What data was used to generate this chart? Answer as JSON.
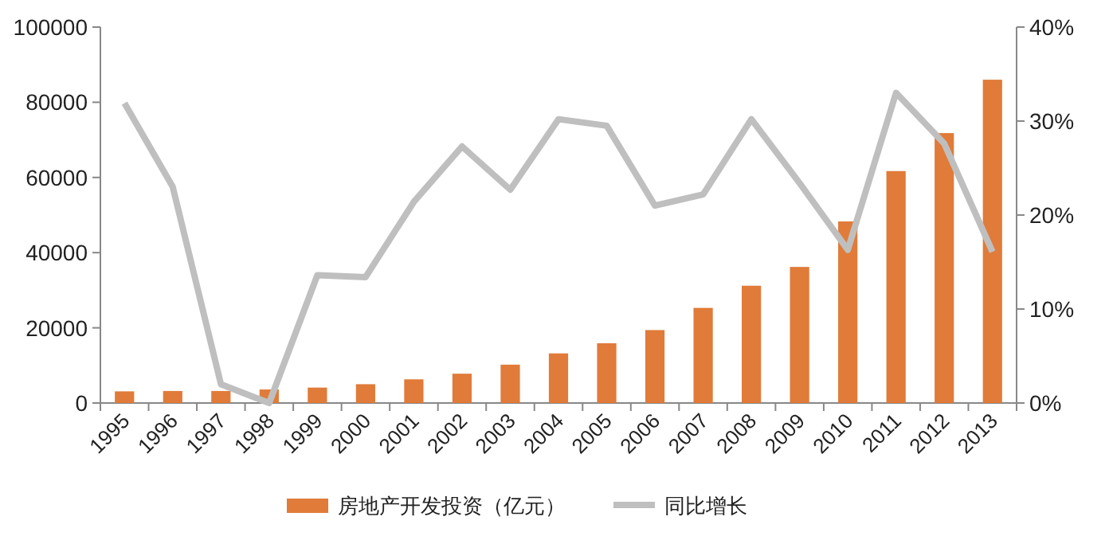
{
  "chart_data": {
    "type": "bar",
    "categories": [
      "1995",
      "1996",
      "1997",
      "1998",
      "1999",
      "2000",
      "2001",
      "2002",
      "2003",
      "2004",
      "2005",
      "2006",
      "2007",
      "2008",
      "2009",
      "2010",
      "2011",
      "2012",
      "2013"
    ],
    "series": [
      {
        "name": "房地产开发投资（亿元）",
        "color": "#e07b39",
        "values": [
          3100,
          3200,
          3200,
          3600,
          4100,
          5000,
          6300,
          7800,
          10200,
          13200,
          15900,
          19400,
          25300,
          31200,
          36200,
          48300,
          61700,
          71800,
          86000
        ]
      },
      {
        "name": "同比增长",
        "type": "line",
        "axis": "y2",
        "color": "#bfbfbf",
        "values": [
          31.9,
          23,
          2,
          0,
          13.6,
          13.4,
          21.4,
          27.3,
          22.7,
          30.2,
          29.5,
          21,
          22.2,
          30.2,
          23.4,
          16.3,
          33,
          27.6,
          16.1
        ]
      }
    ],
    "ylim": [
      0,
      100000
    ],
    "yticks": [
      0,
      20000,
      40000,
      60000,
      80000,
      100000
    ],
    "y2lim": [
      0,
      40
    ],
    "y2ticks": [
      {
        "value": 0,
        "label": "0%"
      },
      {
        "value": 10,
        "label": "10%"
      },
      {
        "value": 20,
        "label": "20%"
      },
      {
        "value": 30,
        "label": "30%"
      },
      {
        "value": 40,
        "label": "40%"
      }
    ],
    "grid": false,
    "legend": "bottom",
    "marker": "none",
    "line_style": "solid"
  }
}
